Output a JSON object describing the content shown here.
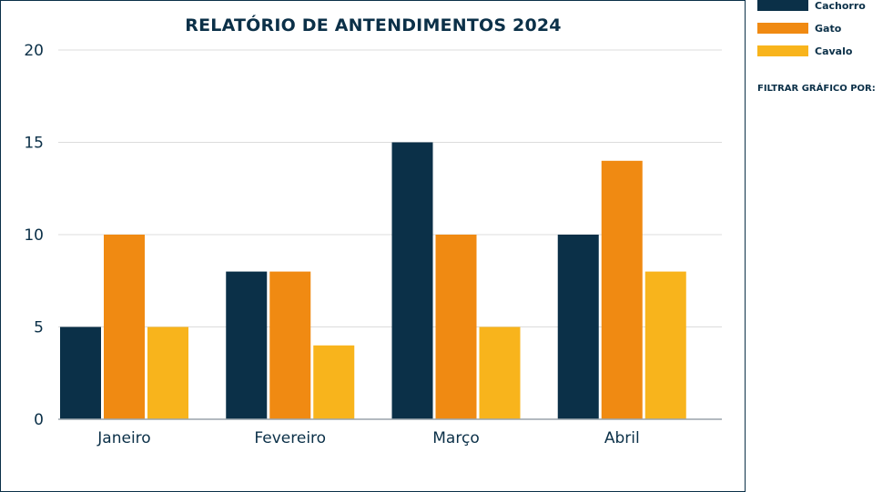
{
  "chart_data": {
    "type": "bar",
    "title": "RELATÓRIO DE ANTENDIMENTOS 2024",
    "categories": [
      "Janeiro",
      "Fevereiro",
      "Março",
      "Abril"
    ],
    "series": [
      {
        "name": "Cachorro",
        "values": [
          5,
          8,
          15,
          10
        ],
        "color": "#0b3048"
      },
      {
        "name": "Gato",
        "values": [
          10,
          8,
          10,
          14
        ],
        "color": "#f08a12"
      },
      {
        "name": "Cavalo",
        "values": [
          5,
          4,
          5,
          8
        ],
        "color": "#f8b41c"
      }
    ],
    "ylim": [
      0,
      20
    ],
    "yticks": [
      "0",
      "5",
      "10",
      "15",
      "20"
    ],
    "ytick_values": [
      0,
      5,
      10,
      15,
      20
    ],
    "grid": true,
    "legend_placement": "right-top"
  },
  "filter": {
    "label": "FILTRAR GRÁFICO POR:"
  }
}
